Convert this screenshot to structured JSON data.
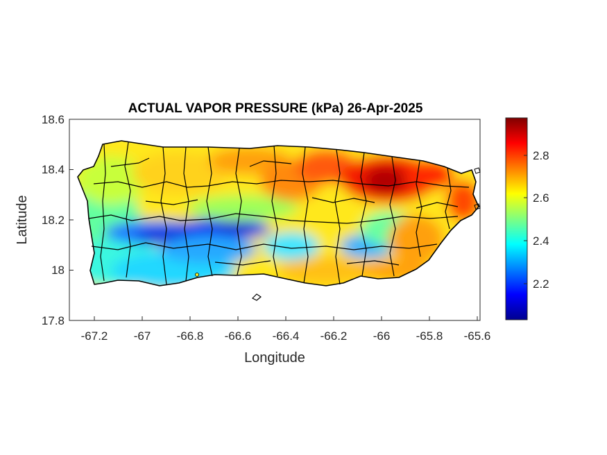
{
  "title": "ACTUAL VAPOR PRESSURE (kPa) 26-Apr-2025",
  "map": {
    "region": "Puerto Rico",
    "variable": "actual vapor pressure",
    "units": "kPa",
    "date": "26-Apr-2025",
    "xlabel": "Longitude",
    "ylabel": "Latitude",
    "xlim": [
      -67.3,
      -65.58
    ],
    "ylim": [
      17.8,
      18.6
    ],
    "x_ticks": [
      "-67.2",
      "-67",
      "-66.8",
      "-66.6",
      "-66.4",
      "-66.2",
      "-66",
      "-65.8",
      "-65.6"
    ],
    "y_ticks": [
      "18.6",
      "18.4",
      "18.2",
      "18",
      "17.8"
    ],
    "colorbar": {
      "colormap": "jet",
      "range": [
        2.03,
        2.97
      ],
      "ticks": [
        "2.8",
        "2.6",
        "2.4",
        "2.2"
      ]
    },
    "boundary_color": "#000000"
  }
}
